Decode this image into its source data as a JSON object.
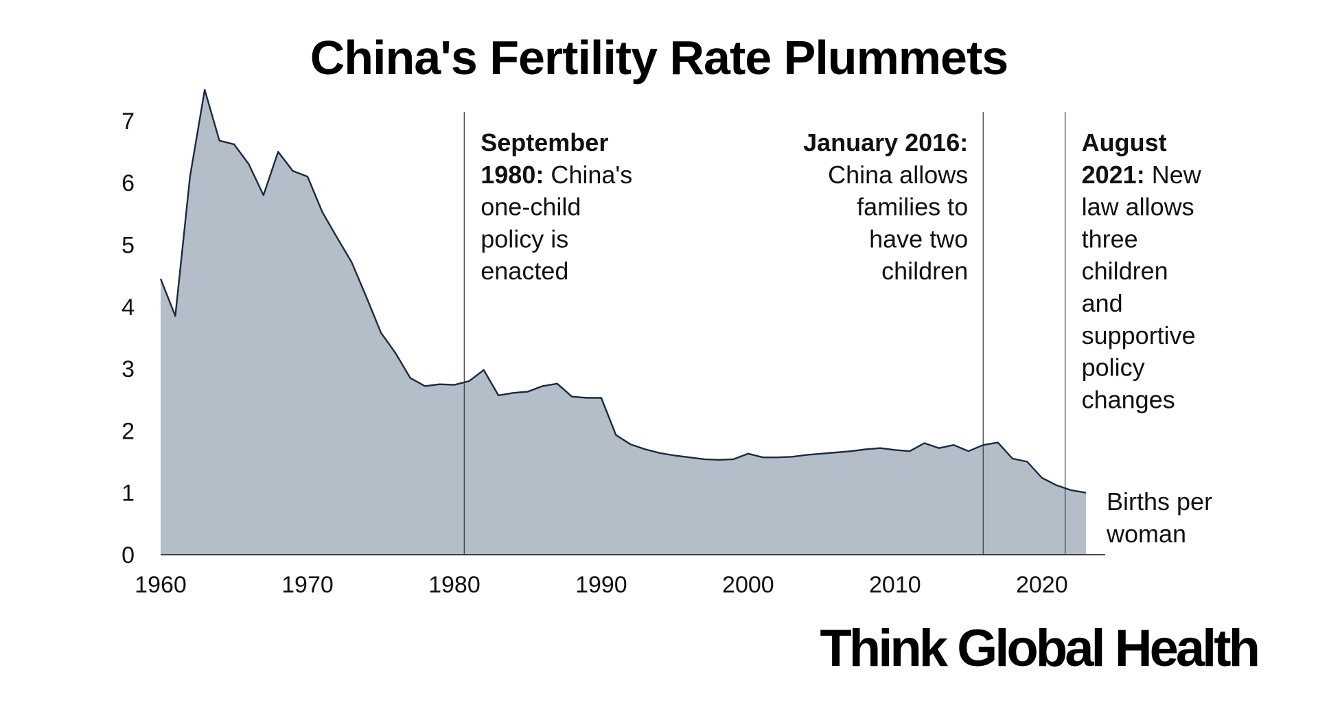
{
  "chart_data": {
    "type": "area",
    "title": "China's Fertility Rate Plummets",
    "series_label": [
      "Births per",
      "woman"
    ],
    "x": [
      1960,
      1961,
      1962,
      1963,
      1964,
      1965,
      1966,
      1967,
      1968,
      1969,
      1970,
      1971,
      1972,
      1973,
      1974,
      1975,
      1976,
      1977,
      1978,
      1979,
      1980,
      1981,
      1982,
      1983,
      1984,
      1985,
      1986,
      1987,
      1988,
      1989,
      1990,
      1991,
      1992,
      1993,
      1994,
      1995,
      1996,
      1997,
      1998,
      1999,
      2000,
      2001,
      2002,
      2003,
      2004,
      2005,
      2006,
      2007,
      2008,
      2009,
      2010,
      2011,
      2012,
      2013,
      2014,
      2015,
      2016,
      2017,
      2018,
      2019,
      2020,
      2021,
      2022,
      2023
    ],
    "y": [
      4.45,
      3.85,
      6.1,
      7.5,
      6.68,
      6.62,
      6.3,
      5.8,
      6.5,
      6.19,
      6.1,
      5.53,
      5.12,
      4.72,
      4.16,
      3.58,
      3.25,
      2.85,
      2.72,
      2.75,
      2.74,
      2.8,
      2.98,
      2.57,
      2.61,
      2.63,
      2.72,
      2.76,
      2.55,
      2.53,
      2.53,
      1.93,
      1.78,
      1.7,
      1.64,
      1.6,
      1.57,
      1.54,
      1.53,
      1.54,
      1.63,
      1.57,
      1.57,
      1.58,
      1.61,
      1.63,
      1.65,
      1.67,
      1.7,
      1.72,
      1.69,
      1.67,
      1.8,
      1.72,
      1.77,
      1.67,
      1.77,
      1.81,
      1.55,
      1.5,
      1.24,
      1.12,
      1.04,
      1.0
    ],
    "x_ticks": [
      "1960",
      "1970",
      "1980",
      "1990",
      "2000",
      "2010",
      "2020"
    ],
    "y_ticks": [
      "0",
      "1",
      "2",
      "3",
      "4",
      "5",
      "6",
      "7"
    ],
    "xlim": [
      1960,
      2023
    ],
    "ylim": [
      0,
      7.5
    ],
    "fill_color": "#b4bec9",
    "line_color": "#1b2a3e",
    "annotations": [
      {
        "x": 1980.67,
        "align": "left",
        "lines": [
          [
            "September",
            ""
          ],
          [
            "1980:",
            " China's"
          ],
          [
            "",
            "one-child"
          ],
          [
            "",
            "policy is"
          ],
          [
            "",
            "enacted"
          ]
        ]
      },
      {
        "x": 2016.0,
        "align": "right",
        "lines": [
          [
            "January 2016:",
            ""
          ],
          [
            "",
            "China allows"
          ],
          [
            "",
            "families to"
          ],
          [
            "",
            "have two"
          ],
          [
            "",
            "children"
          ]
        ]
      },
      {
        "x": 2021.58,
        "align": "left",
        "lines": [
          [
            "August",
            ""
          ],
          [
            "2021:",
            " New"
          ],
          [
            "",
            "law allows"
          ],
          [
            "",
            "three"
          ],
          [
            "",
            "children"
          ],
          [
            "",
            "and"
          ],
          [
            "",
            "supportive"
          ],
          [
            "",
            "policy"
          ],
          [
            "",
            "changes"
          ]
        ]
      }
    ]
  },
  "source_brand": "Think Global Health"
}
